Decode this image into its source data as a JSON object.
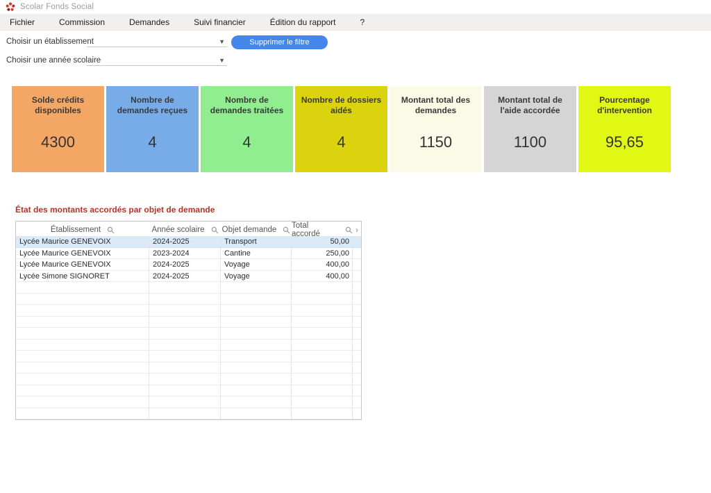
{
  "window": {
    "title": "Scolar Fonds Social"
  },
  "menu": {
    "items": [
      "Fichier",
      "Commission",
      "Demandes",
      "Suivi financier",
      "Édition du rapport",
      "?"
    ]
  },
  "filters": {
    "establishment_label": "Choisir un établissement",
    "establishment_value": "",
    "year_label": "Choisir une année scolaire",
    "year_value": "",
    "clear_button_label": "Supprimer le filtre",
    "button_color": "#4486eb"
  },
  "kpis": [
    {
      "label": "Solde crédits disponibles",
      "value": "4300",
      "bg": "#f4a765"
    },
    {
      "label": "Nombre de demandes reçues",
      "value": "4",
      "bg": "#77ace9"
    },
    {
      "label": "Nombre de demandes traitées",
      "value": "4",
      "bg": "#90ee90"
    },
    {
      "label": "Nombre de dossiers aidés",
      "value": "4",
      "bg": "#dbd30e"
    },
    {
      "label": "Montant total des demandes",
      "value": "1150",
      "bg": "#fbfae6"
    },
    {
      "label": "Montant total de l'aide accordée",
      "value": "1100",
      "bg": "#d5d5d5"
    },
    {
      "label": "Pourcentage d'intervention",
      "value": "95,65",
      "bg": "#e1f714"
    }
  ],
  "table": {
    "title": "État des montants accordés par objet de demande",
    "columns": [
      "Établissement",
      "Année scolaire",
      "Objet demande",
      "Total accordé"
    ],
    "rows": [
      {
        "etablissement": "Lycée Maurice GENEVOIX",
        "annee": "2024-2025",
        "objet": "Transport",
        "total": "50,00",
        "selected": true
      },
      {
        "etablissement": "Lycée Maurice GENEVOIX",
        "annee": "2023-2024",
        "objet": "Cantine",
        "total": "250,00",
        "selected": false
      },
      {
        "etablissement": "Lycée Maurice GENEVOIX",
        "annee": "2024-2025",
        "objet": "Voyage",
        "total": "400,00",
        "selected": false
      },
      {
        "etablissement": "Lycée Simone SIGNORET",
        "annee": "2024-2025",
        "objet": "Voyage",
        "total": "400,00",
        "selected": false
      }
    ],
    "empty_row_count": 12,
    "scroll_arrow": "›"
  }
}
